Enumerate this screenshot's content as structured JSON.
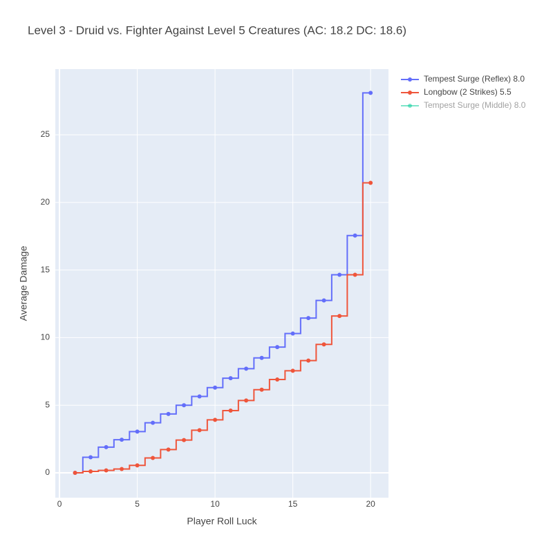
{
  "chart_data": {
    "type": "line",
    "line_shape": "hvh",
    "title": "Level 3 - Druid vs. Fighter Against Level 5 Creatures (AC: 18.2 DC: 18.6)",
    "x_label": "Player Roll Luck",
    "y_label": "Average Damage",
    "x": [
      1,
      2,
      3,
      4,
      5,
      6,
      7,
      8,
      9,
      10,
      11,
      12,
      13,
      14,
      15,
      16,
      17,
      18,
      19,
      20
    ],
    "series": [
      {
        "name": "Tempest Surge (Reflex) 8.0",
        "color": "#636efa",
        "values": [
          0,
          1.15,
          1.9,
          2.45,
          3.05,
          3.7,
          4.35,
          5.0,
          5.65,
          6.3,
          7.0,
          7.7,
          8.5,
          9.3,
          10.3,
          11.45,
          12.75,
          14.65,
          17.55,
          28.1
        ]
      },
      {
        "name": "Longbow (2 Strikes) 5.5",
        "color": "#ef553b",
        "values": [
          0,
          0.1,
          0.18,
          0.28,
          0.55,
          1.1,
          1.72,
          2.42,
          3.15,
          3.92,
          4.6,
          5.35,
          6.15,
          6.9,
          7.55,
          8.3,
          9.5,
          11.6,
          14.65,
          21.45
        ]
      },
      {
        "name": "Tempest Surge (Middle) 8.0",
        "color": "#00cc96",
        "visible": "legendonly"
      }
    ],
    "xlim": [
      -0.27,
      21.15
    ],
    "xticks": [
      0,
      5,
      10,
      15,
      20
    ],
    "ylim": [
      -1.84,
      29.86
    ],
    "yticks": [
      0,
      5,
      10,
      15,
      20,
      25
    ],
    "grid": true,
    "legend": "right"
  }
}
